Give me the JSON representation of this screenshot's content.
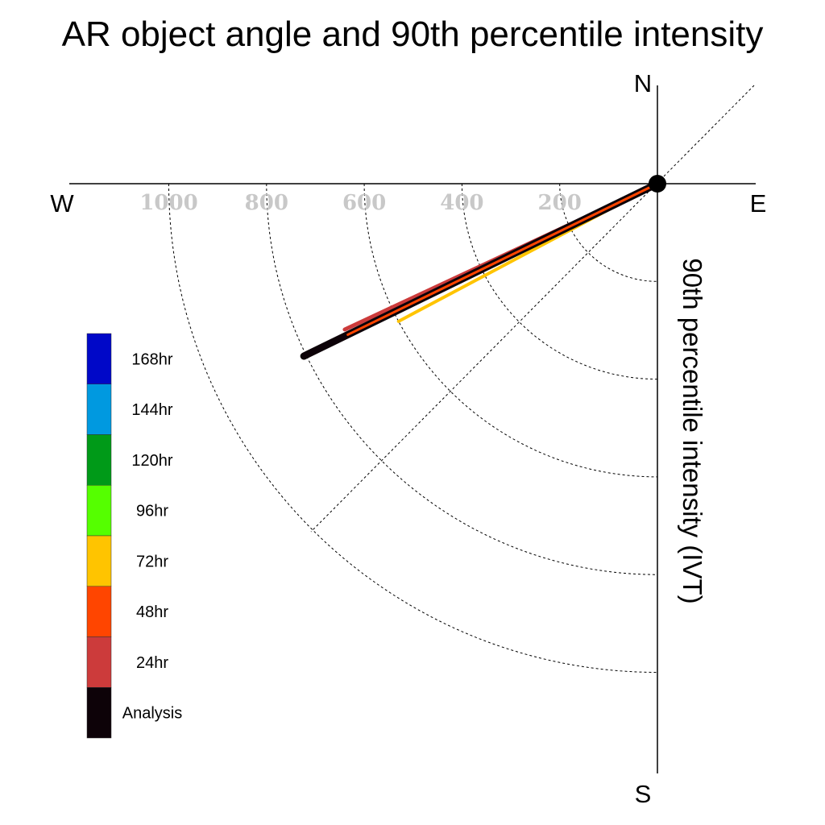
{
  "chart_data": {
    "type": "polar-vector",
    "title": "AR object angle and 90th percentile intensity",
    "radial_axis_label": "90th percentile intensity (IVT)",
    "compass": {
      "north": "N",
      "south": "S",
      "east": "E",
      "west": "W"
    },
    "rings": [
      {
        "value": 200,
        "label": "200"
      },
      {
        "value": 400,
        "label": "400"
      },
      {
        "value": 600,
        "label": "600"
      },
      {
        "value": 800,
        "label": "800"
      },
      {
        "value": 1000,
        "label": "1000"
      }
    ],
    "rmax": 1200,
    "angle_units": "degrees counterclockwise from East",
    "series": [
      {
        "name": "72hr",
        "color": "#FFC400",
        "angle": 208,
        "intensity": 600
      },
      {
        "name": "24hr",
        "color": "#CC3B3B",
        "angle": 205,
        "intensity": 706
      },
      {
        "name": "48hr",
        "color": "#FF4500",
        "angle": 206,
        "intensity": 705
      },
      {
        "name": "Analysis",
        "color": "#0D0208",
        "angle": 206,
        "intensity": 805
      }
    ],
    "legend": [
      {
        "label": "168hr",
        "color": "#0008C8"
      },
      {
        "label": "144hr",
        "color": "#0099E0"
      },
      {
        "label": "120hr",
        "color": "#009A18"
      },
      {
        "label": "96hr",
        "color": "#55FF00"
      },
      {
        "label": "72hr",
        "color": "#FFC400"
      },
      {
        "label": "48hr",
        "color": "#FF4500"
      },
      {
        "label": "24hr",
        "color": "#CC3B3B"
      },
      {
        "label": "Analysis",
        "color": "#0D0208"
      }
    ],
    "legend_placement": "left"
  }
}
